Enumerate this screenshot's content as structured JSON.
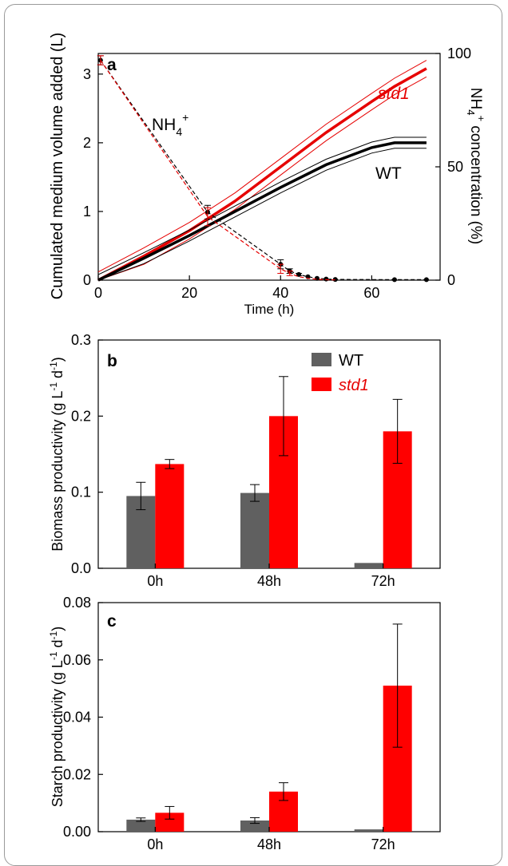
{
  "chart_data": [
    {
      "panel": "a",
      "type": "line",
      "xlabel": "Time (h)",
      "ylabel": "Cumulated medium volume added (L)",
      "y2label_parts": [
        "NH",
        "4",
        "+",
        " concentration (%)"
      ],
      "xlim": [
        0,
        75
      ],
      "ylim": [
        0,
        3.3
      ],
      "y2lim": [
        0,
        100
      ],
      "xticks": [
        "0",
        "20",
        "40",
        "60"
      ],
      "yticks": [
        "0",
        "1",
        "2",
        "3"
      ],
      "y2ticks": [
        "0",
        "50",
        "100"
      ],
      "annotations": {
        "nh4_base": "NH",
        "nh4_sub": "4",
        "nh4_sup": "+",
        "std1": "std1",
        "wt": "WT"
      },
      "colors": {
        "wt": "#000000",
        "std1": "#e60000"
      },
      "series": [
        {
          "name": "std1",
          "axis": "left",
          "style": "solid",
          "x": [
            0,
            10,
            20,
            30,
            40,
            50,
            60,
            65,
            72
          ],
          "y": [
            0,
            0.35,
            0.72,
            1.15,
            1.65,
            2.15,
            2.6,
            2.82,
            3.08
          ],
          "band": [
            0.12,
            0.12,
            0.12,
            0.12,
            0.12,
            0.12,
            0.12,
            0.12,
            0.12
          ]
        },
        {
          "name": "WT",
          "axis": "left",
          "style": "solid",
          "x": [
            0,
            10,
            20,
            30,
            40,
            50,
            60,
            65,
            72
          ],
          "y": [
            0,
            0.32,
            0.65,
            1.0,
            1.35,
            1.68,
            1.93,
            2.0,
            2.0
          ],
          "band": [
            0.08,
            0.08,
            0.08,
            0.08,
            0.08,
            0.08,
            0.08,
            0.08,
            0.08
          ]
        },
        {
          "name": "WT NH4+",
          "axis": "right",
          "style": "dashed",
          "x": [
            0.5,
            24,
            40,
            42,
            44,
            46,
            48,
            50,
            52,
            65,
            72
          ],
          "y": [
            97,
            30,
            7,
            4,
            2.5,
            1.5,
            0.8,
            0.5,
            0.3,
            0.2,
            0.2
          ],
          "err": [
            2,
            3,
            2,
            1,
            0.5,
            0,
            0,
            0,
            0,
            0,
            0
          ]
        },
        {
          "name": "std1 NH4+",
          "axis": "right",
          "style": "dashed",
          "x": [
            0.5,
            24,
            40,
            42,
            44,
            46,
            48,
            50,
            52
          ],
          "y": [
            97,
            28,
            5,
            3,
            1.5,
            0.8,
            0.4,
            0.2,
            0.1
          ],
          "err": [
            2,
            4,
            2,
            1,
            0,
            0,
            0,
            0,
            0
          ]
        }
      ]
    },
    {
      "panel": "b",
      "type": "bar",
      "ylabel_base": "Biomass productivity (g L",
      "ylabel_e1": "-1",
      "ylabel_mid": " d",
      "ylabel_e2": "-1",
      "ylabel_end": ")",
      "categories": [
        "0h",
        "48h",
        "72h"
      ],
      "ylim": [
        0,
        0.3
      ],
      "yticks": [
        "0.0",
        "0.1",
        "0.2",
        "0.3"
      ],
      "legend": {
        "position": "top-right",
        "wt": "WT",
        "std1": "std1"
      },
      "series": [
        {
          "name": "WT",
          "color": "#606060",
          "values": [
            0.095,
            0.099,
            0.007
          ],
          "errors": [
            0.018,
            0.011,
            0.0
          ]
        },
        {
          "name": "std1",
          "color": "#ff0000",
          "values": [
            0.137,
            0.2,
            0.18
          ],
          "errors": [
            0.006,
            0.052,
            0.042
          ]
        }
      ]
    },
    {
      "panel": "c",
      "type": "bar",
      "ylabel_base": "Starch productivity (g L",
      "ylabel_e1": "-1",
      "ylabel_mid": " d",
      "ylabel_e2": "-1",
      "ylabel_end": ")",
      "categories": [
        "0h",
        "48h",
        "72h"
      ],
      "ylim": [
        0,
        0.08
      ],
      "yticks": [
        "0.00",
        "0.02",
        "0.04",
        "0.06",
        "0.08"
      ],
      "series": [
        {
          "name": "WT",
          "color": "#606060",
          "values": [
            0.0042,
            0.0039,
            0.0008
          ],
          "errors": [
            0.0006,
            0.001,
            0.0
          ]
        },
        {
          "name": "std1",
          "color": "#ff0000",
          "values": [
            0.0066,
            0.014,
            0.051
          ],
          "errors": [
            0.0022,
            0.0031,
            0.0215
          ]
        }
      ]
    }
  ]
}
